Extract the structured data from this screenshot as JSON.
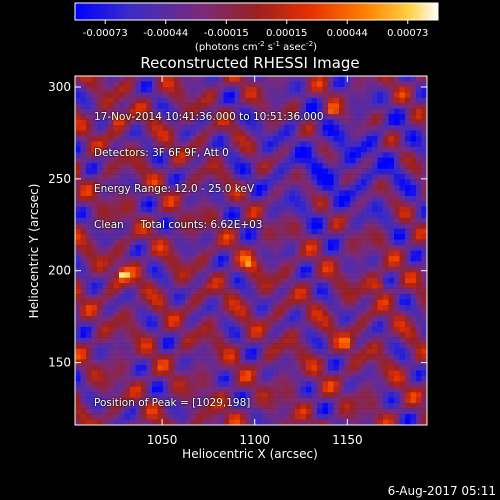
{
  "colorbar": {
    "ticks": [
      "-0.00073",
      "-0.00044",
      "-0.00015",
      "0.00015",
      "0.00044",
      "0.00073"
    ],
    "units_prefix": "(photons cm",
    "units_sup1": "-2",
    "units_mid": " s",
    "units_sup2": "-1",
    "units_suffix": " asec",
    "units_sup3": "-2",
    "units_end": ")"
  },
  "info": {
    "time_range": "17-Nov-2014 10:41:36.000 to 10:51:36.000",
    "detectors": "Detectors: 3F 6F 9F, Att 0",
    "energy": "Energy Range: 12.0 - 25.0 keV",
    "clean": "Clean     Total counts: 6.62E+03",
    "peak": "Position of Peak = [1029,198]"
  },
  "footer_timestamp": "6-Aug-2017 05:11",
  "colors": {
    "background": "#000000",
    "text": "#ffffff"
  },
  "chart_data": {
    "type": "heatmap",
    "title": "Reconstructed RHESSI Image",
    "xlabel": "Heliocentric X (arcsec)",
    "ylabel": "Heliocentric Y (arcsec)",
    "xlim": [
      1003,
      1193
    ],
    "ylim": [
      116,
      306
    ],
    "x_ticks": [
      1050,
      1100,
      1150
    ],
    "y_ticks": [
      150,
      200,
      250,
      300
    ],
    "colormap": "rhessi-blue-purple-red-yellow-white",
    "value_range": [
      -0.00073,
      0.00073
    ],
    "peak_position": [
      1029,
      198
    ],
    "sources": [
      {
        "x": 1029,
        "y": 198,
        "value": 0.00073
      },
      {
        "x": 1026,
        "y": 283,
        "value": 0.0006
      },
      {
        "x": 1167,
        "y": 192,
        "value": 0.0005
      },
      {
        "x": 1142,
        "y": 287,
        "value": 0.00046
      },
      {
        "x": 1097,
        "y": 204,
        "value": 0.00042
      },
      {
        "x": 1150,
        "y": 160,
        "value": 0.0004
      },
      {
        "x": 1078,
        "y": 118,
        "value": 0.00038
      }
    ]
  }
}
